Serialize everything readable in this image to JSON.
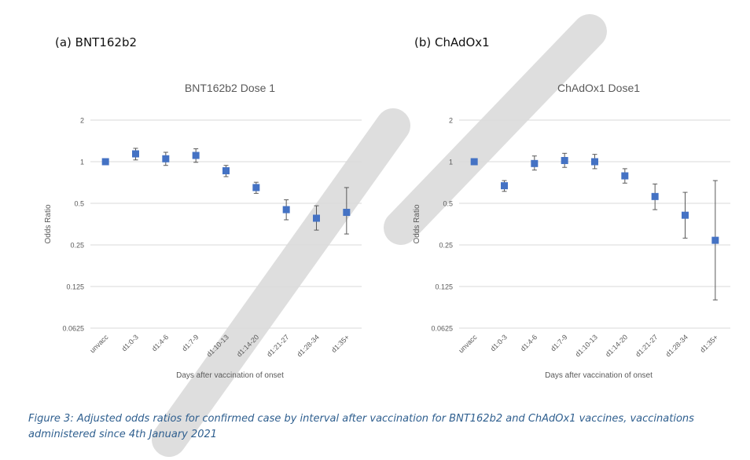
{
  "panels": [
    {
      "label": "(a) BNT162b2"
    },
    {
      "label": "(b) ChAdOx1"
    }
  ],
  "caption": "Figure 3: Adjusted odds ratios for confirmed case by interval after vaccination for BNT162b2 and ChAdOx1 vaccines, vaccinations administered since 4th January 2021",
  "colors": {
    "marker": "#4472c4",
    "error_bar": "#595959",
    "grid": "#d9d9d9",
    "text": "#595959",
    "watermark": "#d9d9d9"
  },
  "chart_data": [
    {
      "type": "scatter",
      "title": "BNT162b2 Dose 1",
      "xlabel": "Days after vaccination of onset",
      "ylabel": "Odds Ratio",
      "y_scale": "log2",
      "yticks": [
        {
          "value": 2,
          "label": "2"
        },
        {
          "value": 1,
          "label": "1"
        },
        {
          "value": 0.5,
          "label": "0.5"
        },
        {
          "value": 0.25,
          "label": "0.25"
        },
        {
          "value": 0.125,
          "label": "0.125"
        },
        {
          "value": 0.0625,
          "label": "0.0625"
        }
      ],
      "ylim": [
        0.0625,
        2
      ],
      "grid": true,
      "categories": [
        "unvacc",
        "d1:0-3",
        "d1:4-6",
        "d1:7-9",
        "d1:10-13",
        "d1:14-20",
        "d1:21-27",
        "d1:28-34",
        "d1:35+"
      ],
      "values": [
        1.0,
        1.14,
        1.05,
        1.11,
        0.86,
        0.65,
        0.45,
        0.39,
        0.43
      ],
      "lower": [
        1.0,
        1.03,
        0.94,
        0.99,
        0.78,
        0.59,
        0.38,
        0.32,
        0.3
      ],
      "upper": [
        1.0,
        1.25,
        1.17,
        1.24,
        0.94,
        0.71,
        0.53,
        0.48,
        0.65
      ]
    },
    {
      "type": "scatter",
      "title": "ChAdOx1 Dose1",
      "xlabel": "Days after vaccination of onset",
      "ylabel": "Odds Ratio",
      "y_scale": "log2",
      "yticks": [
        {
          "value": 2,
          "label": "2"
        },
        {
          "value": 1,
          "label": "1"
        },
        {
          "value": 0.5,
          "label": "0.5"
        },
        {
          "value": 0.25,
          "label": "0.25"
        },
        {
          "value": 0.125,
          "label": "0.125"
        },
        {
          "value": 0.0625,
          "label": "0.0625"
        }
      ],
      "ylim": [
        0.0625,
        2
      ],
      "grid": true,
      "categories": [
        "unvacc",
        "d1:0-3",
        "d1:4-6",
        "d1:7-9",
        "d1:10-13",
        "d1:14-20",
        "d1:21-27",
        "d1:28-34",
        "d1:35+"
      ],
      "values": [
        1.0,
        0.67,
        0.97,
        1.02,
        1.0,
        0.79,
        0.56,
        0.41,
        0.27
      ],
      "lower": [
        1.0,
        0.61,
        0.87,
        0.91,
        0.89,
        0.7,
        0.45,
        0.28,
        0.1
      ],
      "upper": [
        1.0,
        0.73,
        1.1,
        1.15,
        1.13,
        0.89,
        0.69,
        0.6,
        0.73
      ]
    }
  ]
}
